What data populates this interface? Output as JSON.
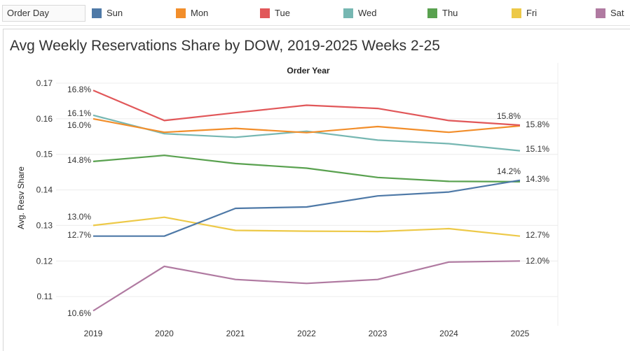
{
  "legend": {
    "field_label": "Order Day",
    "items": [
      {
        "label": "Sun",
        "color": "#4e79a7"
      },
      {
        "label": "Mon",
        "color": "#f28e2b"
      },
      {
        "label": "Tue",
        "color": "#e15759"
      },
      {
        "label": "Wed",
        "color": "#76b7b2"
      },
      {
        "label": "Thu",
        "color": "#59a14f"
      },
      {
        "label": "Fri",
        "color": "#edc948"
      },
      {
        "label": "Sat",
        "color": "#b07aa1"
      }
    ]
  },
  "chart_data": {
    "type": "line",
    "title": "Avg Weekly Reservations Share by DOW, 2019-2025 Weeks 2-25",
    "xlabel": "Order Year",
    "ylabel": "Avg. Resv Share",
    "x": [
      "2019",
      "2020",
      "2021",
      "2022",
      "2023",
      "2024",
      "2025"
    ],
    "ylim": [
      0.1,
      0.17
    ],
    "yticks": [
      "0.11",
      "0.12",
      "0.13",
      "0.14",
      "0.15",
      "0.16",
      "0.17"
    ],
    "grid": "horizontal",
    "series": [
      {
        "name": "Sun",
        "color": "#4e79a7",
        "values": [
          0.127,
          0.127,
          0.1348,
          0.1352,
          0.1383,
          0.1394,
          0.1427
        ],
        "start_label": "12.7%",
        "end_label": "14.3%"
      },
      {
        "name": "Mon",
        "color": "#f28e2b",
        "values": [
          0.16,
          0.1562,
          0.1573,
          0.1561,
          0.1578,
          0.1562,
          0.158
        ],
        "start_label": "16.0%",
        "end_label": "15.8%"
      },
      {
        "name": "Tue",
        "color": "#e15759",
        "values": [
          0.168,
          0.1595,
          0.1617,
          0.1638,
          0.1629,
          0.1595,
          0.1582
        ],
        "start_label": "16.8%",
        "end_label": "15.8%"
      },
      {
        "name": "Wed",
        "color": "#76b7b2",
        "values": [
          0.161,
          0.1558,
          0.1548,
          0.1565,
          0.154,
          0.153,
          0.151
        ],
        "start_label": "16.1%",
        "end_label": "15.1%"
      },
      {
        "name": "Thu",
        "color": "#59a14f",
        "values": [
          0.148,
          0.1497,
          0.1474,
          0.1461,
          0.1435,
          0.1424,
          0.1423
        ],
        "start_label": "14.8%",
        "end_label": "14.2%"
      },
      {
        "name": "Fri",
        "color": "#edc948",
        "values": [
          0.13,
          0.1323,
          0.1286,
          0.1284,
          0.1283,
          0.1291,
          0.127
        ],
        "start_label": "13.0%",
        "end_label": "12.7%"
      },
      {
        "name": "Sat",
        "color": "#b07aa1",
        "values": [
          0.106,
          0.1185,
          0.1148,
          0.1137,
          0.1148,
          0.1197,
          0.12
        ],
        "start_label": "10.6%",
        "end_label": "12.0%"
      }
    ]
  }
}
